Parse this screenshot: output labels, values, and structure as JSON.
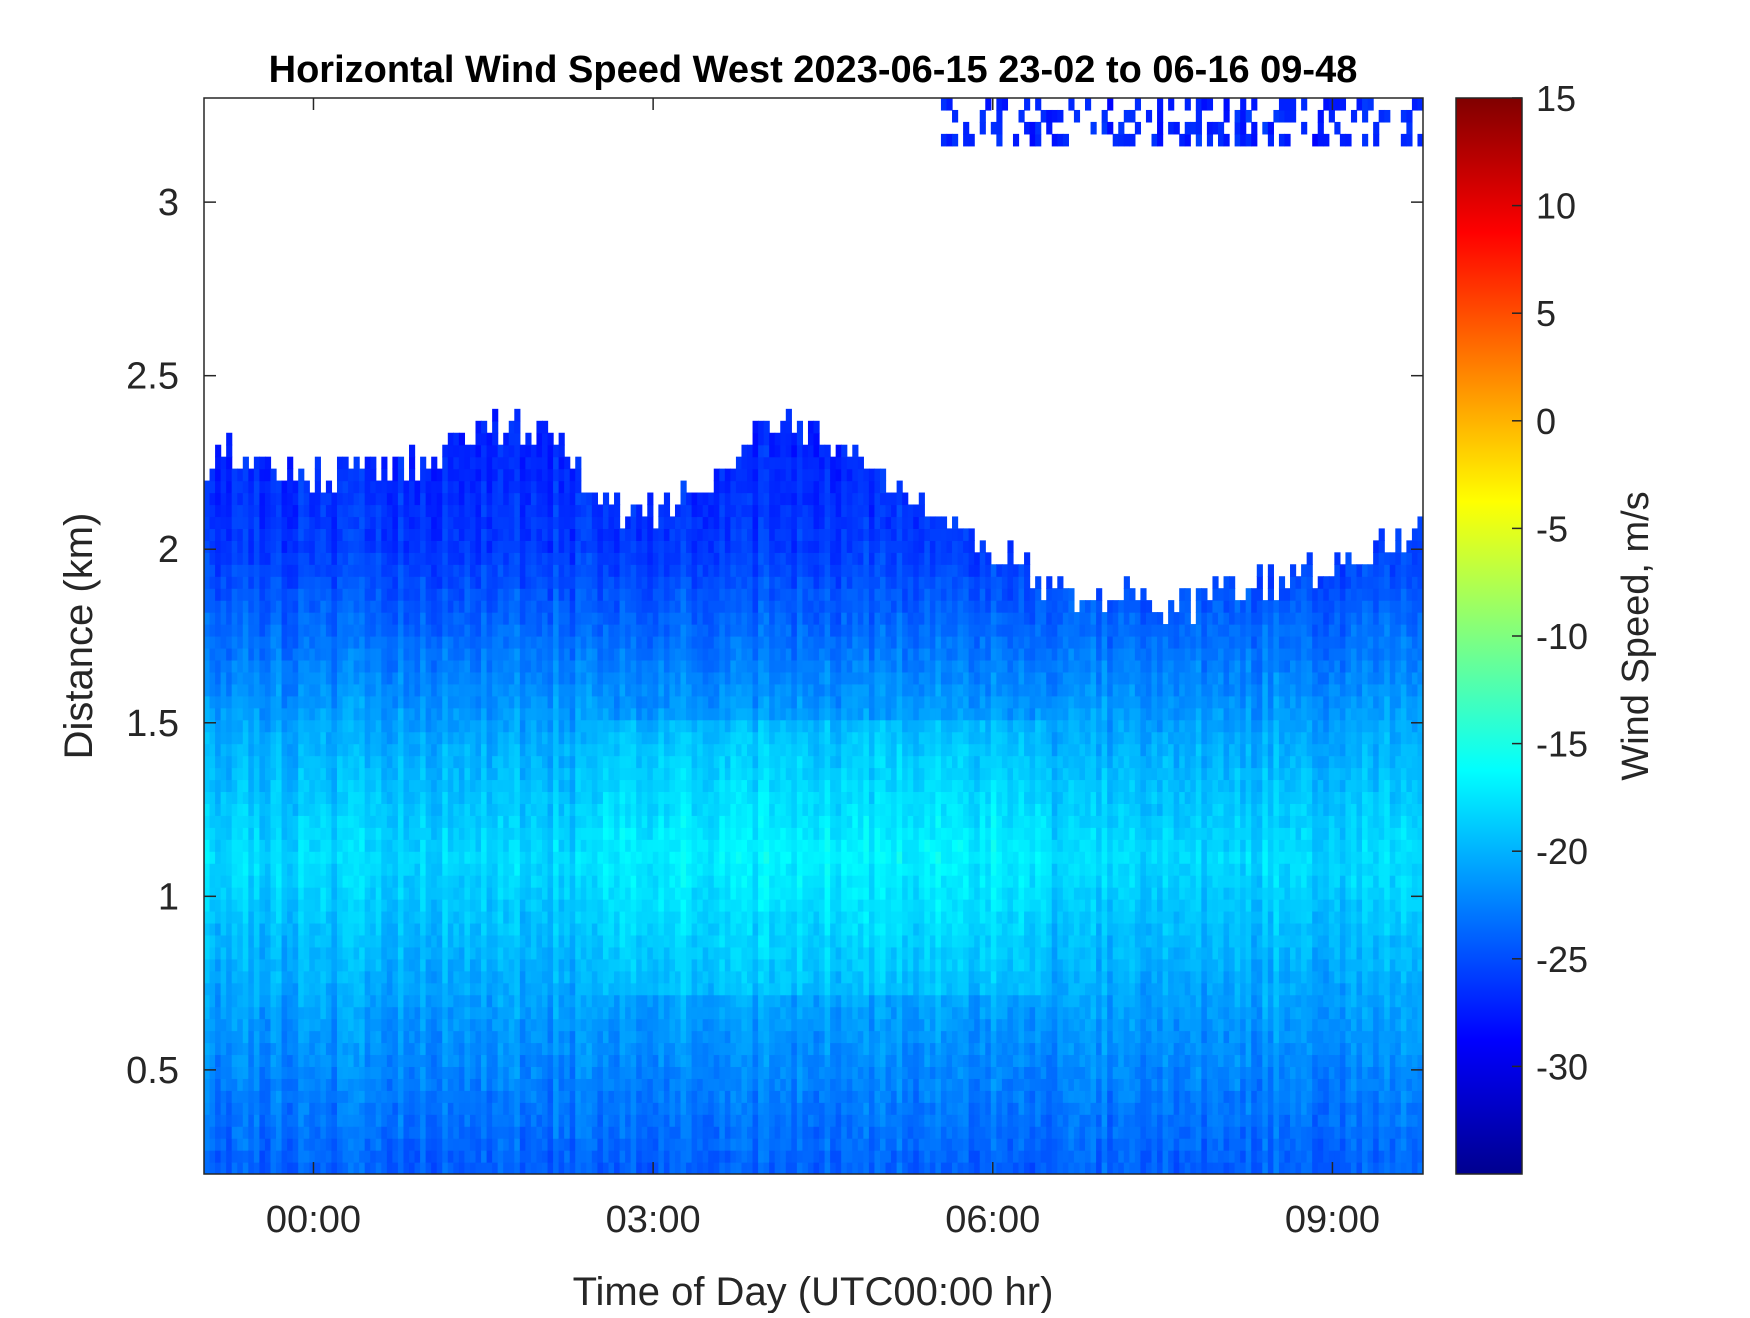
{
  "chart_data": {
    "type": "heatmap",
    "title": "Horizontal Wind Speed West 2023-06-15 23-02 to 06-16 09-48",
    "xlabel": "Time of Day (UTC00:00 hr)",
    "ylabel": "Distance (km)",
    "x_units": "hours relative to 2023-06-16 00:00 UTC",
    "xlim": [
      -0.967,
      9.8
    ],
    "ylim": [
      0.2,
      3.3
    ],
    "x_ticks": [
      {
        "value": 0,
        "label": "00:00"
      },
      {
        "value": 3,
        "label": "03:00"
      },
      {
        "value": 6,
        "label": "06:00"
      },
      {
        "value": 9,
        "label": "09:00"
      }
    ],
    "y_ticks": [
      {
        "value": 0.5,
        "label": "0.5"
      },
      {
        "value": 1,
        "label": "1"
      },
      {
        "value": 1.5,
        "label": "1.5"
      },
      {
        "value": 2,
        "label": "2"
      },
      {
        "value": 2.5,
        "label": "2.5"
      },
      {
        "value": 3,
        "label": "3"
      }
    ],
    "colorbar": {
      "label": "Wind Speed, m/s",
      "colormap": "jet",
      "clim": [
        -35,
        15
      ],
      "ticks": [
        {
          "value": 15,
          "label": "15"
        },
        {
          "value": 10,
          "label": "10"
        },
        {
          "value": 5,
          "label": "5"
        },
        {
          "value": 0,
          "label": "0"
        },
        {
          "value": -5,
          "label": "-5"
        },
        {
          "value": -10,
          "label": "-10"
        },
        {
          "value": -15,
          "label": "-15"
        },
        {
          "value": -20,
          "label": "-20"
        },
        {
          "value": -25,
          "label": "-25"
        },
        {
          "value": -30,
          "label": "-30"
        }
      ]
    },
    "data_top_height_km": [
      {
        "x": -0.967,
        "y": 2.25
      },
      {
        "x": -0.5,
        "y": 2.25
      },
      {
        "x": 0.0,
        "y": 2.2
      },
      {
        "x": 0.5,
        "y": 2.2
      },
      {
        "x": 1.0,
        "y": 2.25
      },
      {
        "x": 1.5,
        "y": 2.35
      },
      {
        "x": 2.0,
        "y": 2.35
      },
      {
        "x": 2.5,
        "y": 2.1
      },
      {
        "x": 3.0,
        "y": 2.1
      },
      {
        "x": 3.5,
        "y": 2.2
      },
      {
        "x": 4.0,
        "y": 2.35
      },
      {
        "x": 4.5,
        "y": 2.3
      },
      {
        "x": 5.0,
        "y": 2.2
      },
      {
        "x": 5.5,
        "y": 2.05
      },
      {
        "x": 6.0,
        "y": 2.0
      },
      {
        "x": 6.5,
        "y": 1.85
      },
      {
        "x": 7.0,
        "y": 1.85
      },
      {
        "x": 7.5,
        "y": 1.8
      },
      {
        "x": 8.0,
        "y": 1.85
      },
      {
        "x": 8.5,
        "y": 1.9
      },
      {
        "x": 9.0,
        "y": 1.95
      },
      {
        "x": 9.5,
        "y": 2.0
      },
      {
        "x": 9.8,
        "y": 2.05
      }
    ],
    "wind_speed_profile": [
      {
        "height_km": 0.2,
        "speed": -24
      },
      {
        "height_km": 0.5,
        "speed": -22
      },
      {
        "height_km": 0.8,
        "speed": -20
      },
      {
        "height_km": 1.1,
        "speed": -18
      },
      {
        "height_km": 1.4,
        "speed": -20
      },
      {
        "height_km": 1.7,
        "speed": -23
      },
      {
        "height_km": 2.0,
        "speed": -26
      },
      {
        "height_km": 2.3,
        "speed": -27
      }
    ],
    "strongest_speed_region": {
      "x_range": [
        3.5,
        5.5
      ],
      "height_range_km": [
        0.9,
        1.3
      ],
      "speed": -16
    },
    "upper_cloud_returns": [
      {
        "x_range": [
          5.5,
          9.8
        ],
        "height_range_km": [
          3.15,
          3.3
        ],
        "speed": -27
      }
    ],
    "grid": false
  }
}
